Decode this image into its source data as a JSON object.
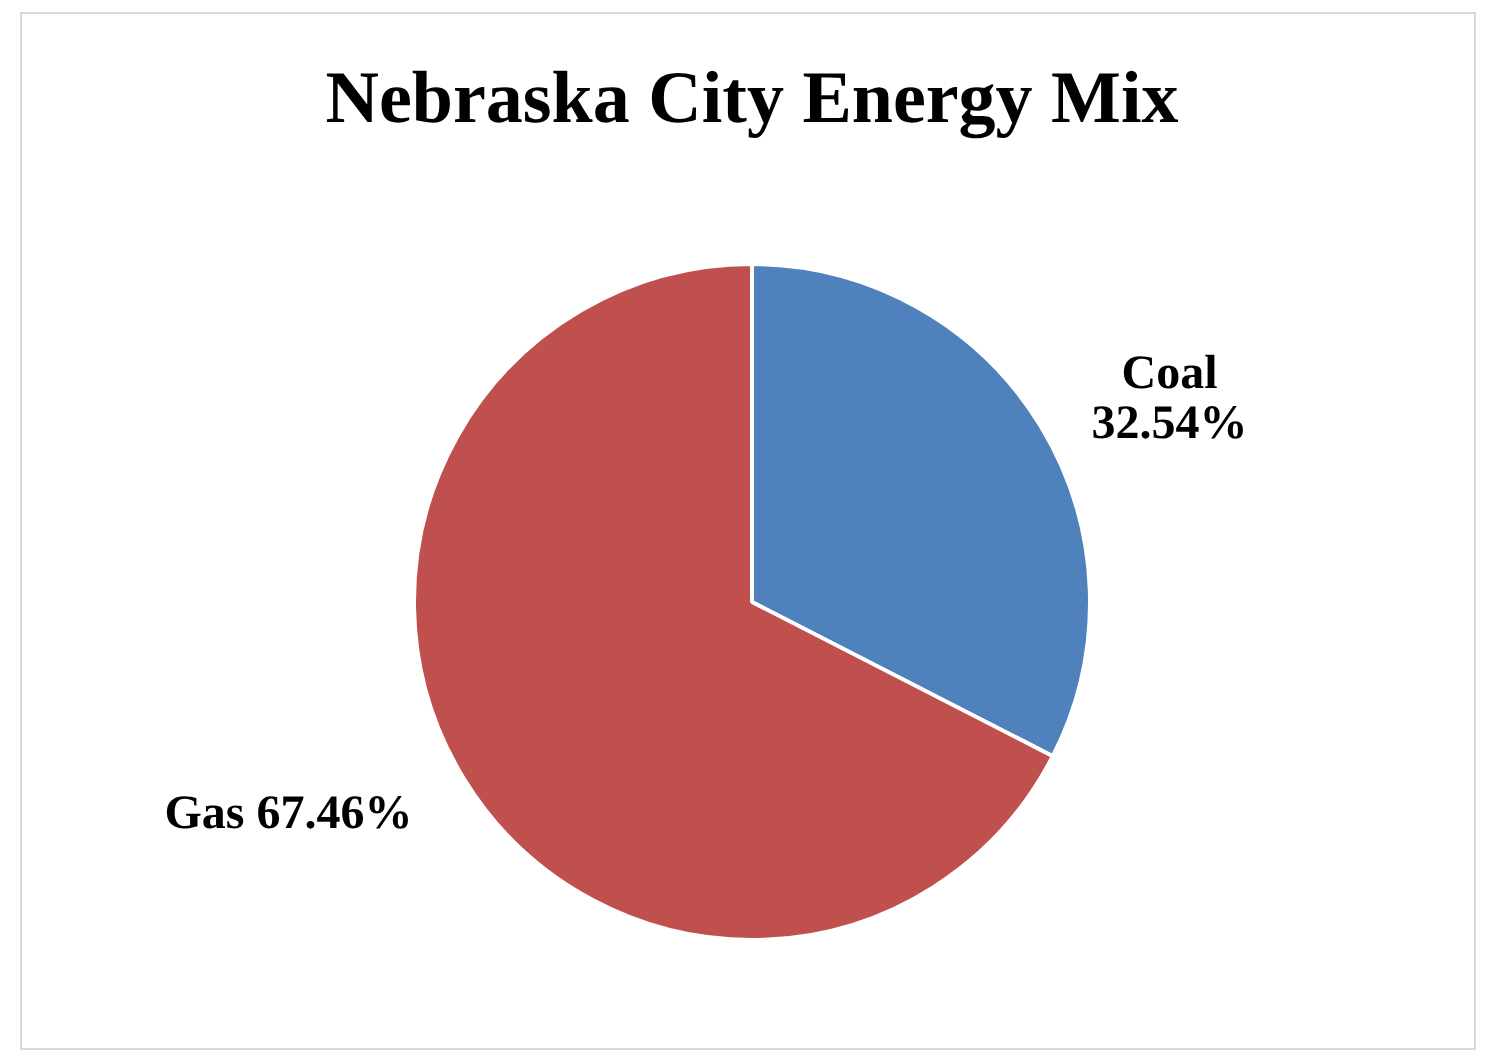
{
  "chart_data": {
    "type": "pie",
    "title": "Nebraska City Energy Mix",
    "categories": [
      "Coal",
      "Gas"
    ],
    "values": [
      32.54,
      67.46
    ],
    "colors": [
      "#4f81bd",
      "#c0504d"
    ],
    "value_labels": [
      "32.54%",
      "67.46%"
    ],
    "legend": false
  }
}
